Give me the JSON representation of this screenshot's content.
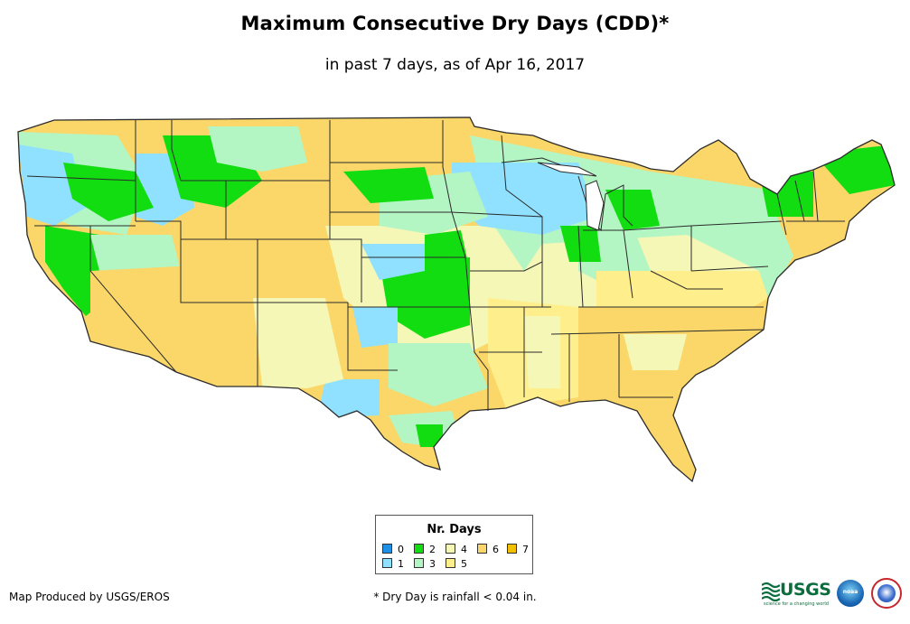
{
  "title": "Maximum Consecutive Dry Days (CDD)*",
  "subtitle": "in past 7 days, as of Apr 16, 2017",
  "legend": {
    "title": "Nr. Days",
    "items": [
      {
        "label": "0",
        "color": "#1e90e6"
      },
      {
        "label": "1",
        "color": "#8fe1ff"
      },
      {
        "label": "2",
        "color": "#11dd11"
      },
      {
        "label": "3",
        "color": "#b4f5c4"
      },
      {
        "label": "4",
        "color": "#f4f7b6"
      },
      {
        "label": "5",
        "color": "#ffef8c"
      },
      {
        "label": "6",
        "color": "#fad768"
      },
      {
        "label": "7",
        "color": "#f2c000"
      }
    ]
  },
  "footer": {
    "credit": "Map Produced by USGS/EROS",
    "note": "* Dry Day is rainfall < 0.04 in."
  },
  "logos": {
    "usgs": "USGS",
    "usgs_tagline": "science for a changing world",
    "noaa": "noaa",
    "nws": "National Weather Service"
  },
  "colors": {
    "state_border": "#2b2b2b",
    "background": "#ffffff"
  }
}
